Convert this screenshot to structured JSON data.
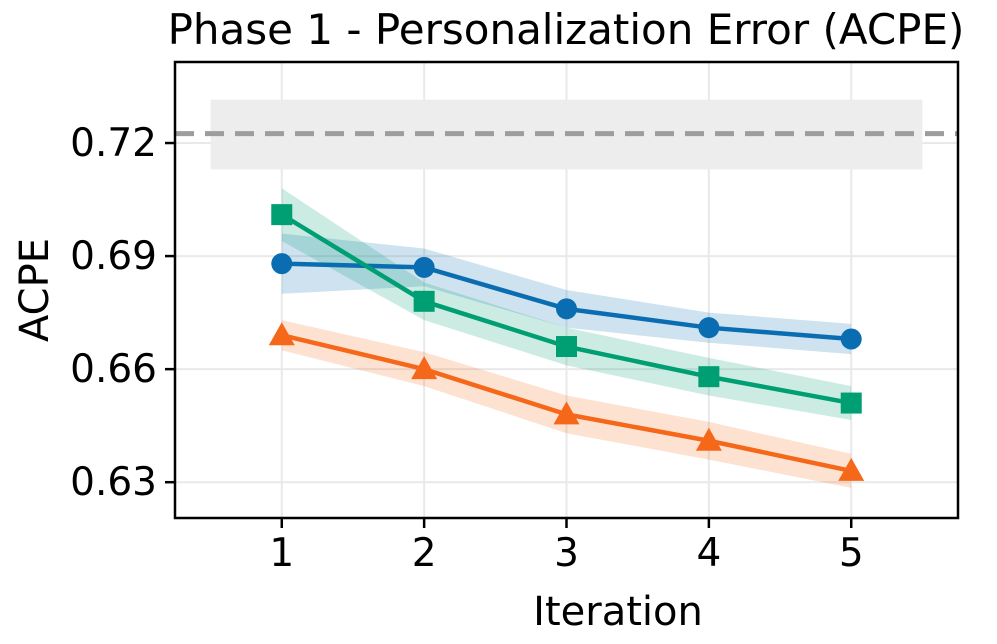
{
  "chart_data": {
    "type": "line",
    "title": "Phase 1 - Personalization Error (ACPE)",
    "xlabel": "Iteration",
    "ylabel": "ACPE",
    "x": [
      1,
      2,
      3,
      4,
      5
    ],
    "xlim": [
      0.25,
      5.75
    ],
    "ylim": [
      0.6205,
      0.7415
    ],
    "xticks": [
      1,
      2,
      3,
      4,
      5
    ],
    "xticklabels": [
      "1",
      "2",
      "3",
      "4",
      "5"
    ],
    "yticks": [
      0.63,
      0.66,
      0.69,
      0.72
    ],
    "yticklabels": [
      "0.63",
      "0.66",
      "0.69",
      "0.72"
    ],
    "grid": true,
    "legend": "none",
    "series": [
      {
        "name": "blue-circle-series",
        "marker": "circle",
        "color": "#0a6db1",
        "band_opacity": 0.2,
        "values": [
          0.688,
          0.687,
          0.676,
          0.671,
          0.668
        ],
        "ci_halfwidth": [
          0.008,
          0.005,
          0.005,
          0.004,
          0.004
        ]
      },
      {
        "name": "green-square-series",
        "marker": "square",
        "color": "#009e73",
        "band_opacity": 0.2,
        "values": [
          0.701,
          0.678,
          0.666,
          0.658,
          0.651
        ],
        "ci_halfwidth": [
          0.007,
          0.005,
          0.005,
          0.005,
          0.0045
        ]
      },
      {
        "name": "orange-triangle-series",
        "marker": "triangle",
        "color": "#f66819",
        "band_opacity": 0.2,
        "values": [
          0.669,
          0.66,
          0.648,
          0.641,
          0.633
        ],
        "ci_halfwidth": [
          0.004,
          0.0045,
          0.005,
          0.005,
          0.0045
        ]
      }
    ],
    "baseline": {
      "value": 0.7225,
      "style": "dashed",
      "color": "#9d9d9d",
      "band": [
        0.713,
        0.7315
      ],
      "band_color": "#ededed",
      "band_x_range": [
        0.5,
        5.5
      ]
    },
    "colors": {
      "grid": "#e9e9e9",
      "spine": "#000000",
      "background": "#ffffff"
    }
  }
}
